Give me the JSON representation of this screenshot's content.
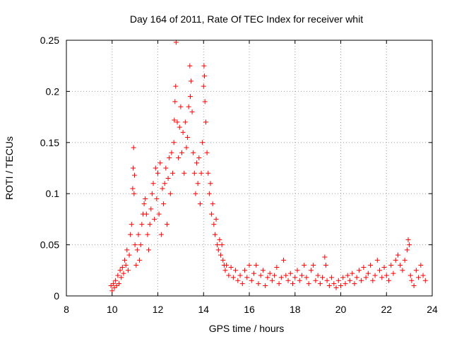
{
  "chart_data": {
    "type": "scatter",
    "title": "Day 164 of 2011, Rate Of TEC Index for receiver whit",
    "xlabel": "GPS time / hours",
    "ylabel": "ROTI / TECUs",
    "xlim": [
      8,
      24
    ],
    "ylim": [
      0,
      0.25
    ],
    "x_ticks": [
      8,
      10,
      12,
      14,
      16,
      18,
      20,
      22,
      24
    ],
    "x_tick_labels": [
      "8",
      "10",
      "12",
      "14",
      "16",
      "18",
      "20",
      "22",
      "24"
    ],
    "y_ticks": [
      0,
      0.05,
      0.1,
      0.15,
      0.2,
      0.25
    ],
    "y_tick_labels": [
      "0",
      "0.05",
      "0.1",
      "0.15",
      "0.2",
      "0.25"
    ],
    "grid": true,
    "marker": "+",
    "color": "#ff0000",
    "series": [
      {
        "name": "ROTI",
        "points": [
          [
            9.95,
            0.01
          ],
          [
            10.0,
            0.005
          ],
          [
            10.05,
            0.012
          ],
          [
            10.1,
            0.008
          ],
          [
            10.15,
            0.015
          ],
          [
            10.2,
            0.01
          ],
          [
            10.25,
            0.02
          ],
          [
            10.3,
            0.012
          ],
          [
            10.35,
            0.025
          ],
          [
            10.4,
            0.018
          ],
          [
            10.45,
            0.028
          ],
          [
            10.5,
            0.022
          ],
          [
            10.55,
            0.035
          ],
          [
            10.6,
            0.03
          ],
          [
            10.65,
            0.045
          ],
          [
            10.7,
            0.025
          ],
          [
            10.75,
            0.04
          ],
          [
            10.8,
            0.06
          ],
          [
            10.85,
            0.07
          ],
          [
            10.9,
            0.105
          ],
          [
            10.92,
            0.125
          ],
          [
            10.94,
            0.145
          ],
          [
            10.96,
            0.1
          ],
          [
            10.98,
            0.118
          ],
          [
            11.0,
            0.05
          ],
          [
            11.05,
            0.03
          ],
          [
            11.1,
            0.045
          ],
          [
            11.15,
            0.06
          ],
          [
            11.2,
            0.035
          ],
          [
            11.25,
            0.05
          ],
          [
            11.3,
            0.07
          ],
          [
            11.35,
            0.08
          ],
          [
            11.4,
            0.09
          ],
          [
            11.45,
            0.095
          ],
          [
            11.5,
            0.08
          ],
          [
            11.55,
            0.06
          ],
          [
            11.6,
            0.045
          ],
          [
            11.65,
            0.07
          ],
          [
            11.7,
            0.085
          ],
          [
            11.75,
            0.1
          ],
          [
            11.8,
            0.11
          ],
          [
            11.85,
            0.075
          ],
          [
            11.9,
            0.125
          ],
          [
            11.95,
            0.095
          ],
          [
            12.0,
            0.12
          ],
          [
            12.05,
            0.08
          ],
          [
            12.1,
            0.13
          ],
          [
            12.15,
            0.06
          ],
          [
            12.2,
            0.105
          ],
          [
            12.25,
            0.09
          ],
          [
            12.3,
            0.11
          ],
          [
            12.35,
            0.125
          ],
          [
            12.4,
            0.07
          ],
          [
            12.45,
            0.115
          ],
          [
            12.5,
            0.135
          ],
          [
            12.55,
            0.1
          ],
          [
            12.6,
            0.14
          ],
          [
            12.65,
            0.12
          ],
          [
            12.7,
            0.15
          ],
          [
            12.72,
            0.172
          ],
          [
            12.75,
            0.19
          ],
          [
            12.78,
            0.205
          ],
          [
            12.8,
            0.248
          ],
          [
            12.85,
            0.17
          ],
          [
            12.9,
            0.135
          ],
          [
            12.95,
            0.165
          ],
          [
            13.0,
            0.185
          ],
          [
            13.05,
            0.14
          ],
          [
            13.1,
            0.16
          ],
          [
            13.15,
            0.12
          ],
          [
            13.2,
            0.17
          ],
          [
            13.25,
            0.145
          ],
          [
            13.3,
            0.155
          ],
          [
            13.35,
            0.185
          ],
          [
            13.4,
            0.225
          ],
          [
            13.42,
            0.195
          ],
          [
            13.45,
            0.21
          ],
          [
            13.5,
            0.18
          ],
          [
            13.55,
            0.14
          ],
          [
            13.6,
            0.12
          ],
          [
            13.65,
            0.1
          ],
          [
            13.7,
            0.13
          ],
          [
            13.75,
            0.11
          ],
          [
            13.8,
            0.135
          ],
          [
            13.85,
            0.09
          ],
          [
            13.9,
            0.12
          ],
          [
            13.95,
            0.15
          ],
          [
            14.0,
            0.205
          ],
          [
            14.02,
            0.225
          ],
          [
            14.04,
            0.215
          ],
          [
            14.06,
            0.19
          ],
          [
            14.1,
            0.17
          ],
          [
            14.15,
            0.14
          ],
          [
            14.2,
            0.12
          ],
          [
            14.25,
            0.1
          ],
          [
            14.3,
            0.11
          ],
          [
            14.35,
            0.08
          ],
          [
            14.4,
            0.09
          ],
          [
            14.45,
            0.07
          ],
          [
            14.5,
            0.06
          ],
          [
            14.55,
            0.075
          ],
          [
            14.6,
            0.05
          ],
          [
            14.65,
            0.045
          ],
          [
            14.7,
            0.055
          ],
          [
            14.75,
            0.04
          ],
          [
            14.8,
            0.05
          ],
          [
            14.85,
            0.035
          ],
          [
            14.9,
            0.03
          ],
          [
            14.95,
            0.025
          ],
          [
            15.0,
            0.03
          ],
          [
            15.1,
            0.02
          ],
          [
            15.2,
            0.028
          ],
          [
            15.3,
            0.018
          ],
          [
            15.4,
            0.025
          ],
          [
            15.5,
            0.015
          ],
          [
            15.6,
            0.02
          ],
          [
            15.7,
            0.012
          ],
          [
            15.8,
            0.025
          ],
          [
            15.9,
            0.018
          ],
          [
            16.0,
            0.03
          ],
          [
            16.1,
            0.015
          ],
          [
            16.2,
            0.022
          ],
          [
            16.3,
            0.03
          ],
          [
            16.4,
            0.012
          ],
          [
            16.5,
            0.02
          ],
          [
            16.6,
            0.025
          ],
          [
            16.7,
            0.01
          ],
          [
            16.8,
            0.018
          ],
          [
            16.9,
            0.022
          ],
          [
            17.0,
            0.015
          ],
          [
            17.1,
            0.02
          ],
          [
            17.2,
            0.028
          ],
          [
            17.3,
            0.012
          ],
          [
            17.4,
            0.018
          ],
          [
            17.5,
            0.035
          ],
          [
            17.6,
            0.02
          ],
          [
            17.7,
            0.015
          ],
          [
            17.8,
            0.022
          ],
          [
            17.9,
            0.012
          ],
          [
            18.0,
            0.018
          ],
          [
            18.1,
            0.025
          ],
          [
            18.2,
            0.015
          ],
          [
            18.3,
            0.02
          ],
          [
            18.4,
            0.03
          ],
          [
            18.5,
            0.018
          ],
          [
            18.6,
            0.012
          ],
          [
            18.7,
            0.025
          ],
          [
            18.8,
            0.03
          ],
          [
            18.9,
            0.015
          ],
          [
            19.0,
            0.02
          ],
          [
            19.1,
            0.012
          ],
          [
            19.2,
            0.018
          ],
          [
            19.3,
            0.038
          ],
          [
            19.35,
            0.03
          ],
          [
            19.4,
            0.015
          ],
          [
            19.5,
            0.01
          ],
          [
            19.6,
            0.018
          ],
          [
            19.7,
            0.012
          ],
          [
            19.8,
            0.008
          ],
          [
            19.9,
            0.015
          ],
          [
            20.0,
            0.01
          ],
          [
            20.1,
            0.018
          ],
          [
            20.2,
            0.012
          ],
          [
            20.3,
            0.02
          ],
          [
            20.4,
            0.015
          ],
          [
            20.5,
            0.022
          ],
          [
            20.6,
            0.012
          ],
          [
            20.7,
            0.018
          ],
          [
            20.8,
            0.025
          ],
          [
            20.9,
            0.015
          ],
          [
            21.0,
            0.028
          ],
          [
            21.1,
            0.018
          ],
          [
            21.2,
            0.022
          ],
          [
            21.3,
            0.03
          ],
          [
            21.4,
            0.015
          ],
          [
            21.5,
            0.02
          ],
          [
            21.6,
            0.035
          ],
          [
            21.7,
            0.025
          ],
          [
            21.8,
            0.018
          ],
          [
            21.9,
            0.028
          ],
          [
            22.0,
            0.02
          ],
          [
            22.1,
            0.015
          ],
          [
            22.2,
            0.03
          ],
          [
            22.3,
            0.022
          ],
          [
            22.4,
            0.035
          ],
          [
            22.5,
            0.04
          ],
          [
            22.6,
            0.03
          ],
          [
            22.7,
            0.025
          ],
          [
            22.8,
            0.035
          ],
          [
            22.9,
            0.045
          ],
          [
            22.95,
            0.055
          ],
          [
            23.0,
            0.05
          ],
          [
            23.05,
            0.02
          ],
          [
            23.1,
            0.015
          ],
          [
            23.2,
            0.01
          ],
          [
            23.3,
            0.025
          ],
          [
            23.4,
            0.018
          ],
          [
            23.5,
            0.03
          ],
          [
            23.6,
            0.02
          ],
          [
            23.7,
            0.015
          ]
        ]
      }
    ]
  }
}
